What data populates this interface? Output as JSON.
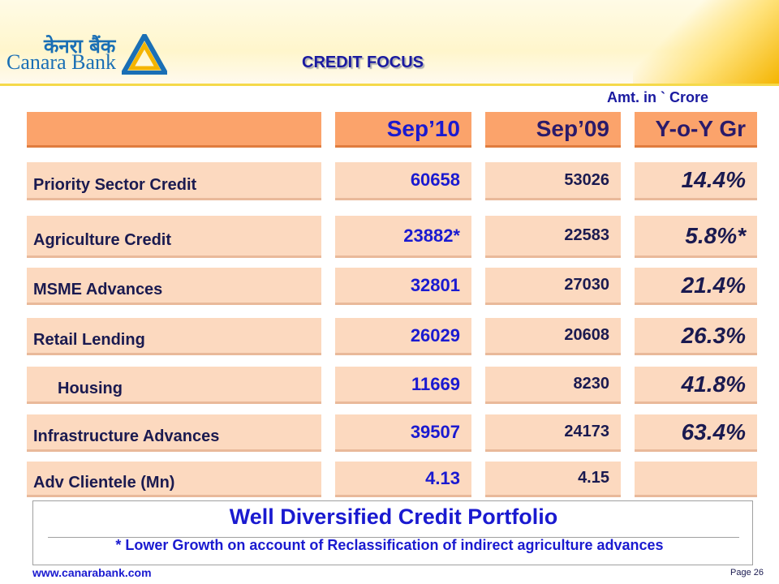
{
  "header": {
    "logo_hindi": "केनरा बैंक",
    "logo_english": "Canara Bank",
    "title": "CREDIT FOCUS",
    "unit_note": "Amt. in ` Crore"
  },
  "table": {
    "columns": [
      "",
      "Sep’10",
      "Sep’09",
      "Y-o-Y Gr"
    ],
    "rows": [
      {
        "label": "Priority Sector Credit",
        "sep10": "60658",
        "sep09": "53026",
        "growth": "14.4%"
      },
      {
        "label": "Agriculture Credit",
        "sep10": "23882*",
        "sep09": "22583",
        "growth": "5.8%*"
      },
      {
        "label": "MSME Advances",
        "sep10": "32801",
        "sep09": "27030",
        "growth": "21.4%"
      },
      {
        "label": "Retail Lending",
        "sep10": "26029",
        "sep09": "20608",
        "growth": "26.3%"
      },
      {
        "label": "Housing",
        "sep10": "11669",
        "sep09": "8230",
        "growth": "41.8%"
      },
      {
        "label": "Infrastructure Advances",
        "sep10": "39507",
        "sep09": "24173",
        "growth": "63.4%"
      },
      {
        "label": "Adv Clientele (Mn)",
        "sep10": "4.13",
        "sep09": "4.15",
        "growth": ""
      }
    ]
  },
  "summary": {
    "title": "Well Diversified Credit Portfolio",
    "footnote": "* Lower Growth on account of Reclassification of indirect agriculture advances"
  },
  "footer": {
    "website": "www.canarabank.com",
    "page": "Page  26"
  },
  "colors": {
    "header_cell": "#fba36b",
    "body_cell": "#fcd9bf",
    "accent_blue": "#1a1ad0"
  }
}
